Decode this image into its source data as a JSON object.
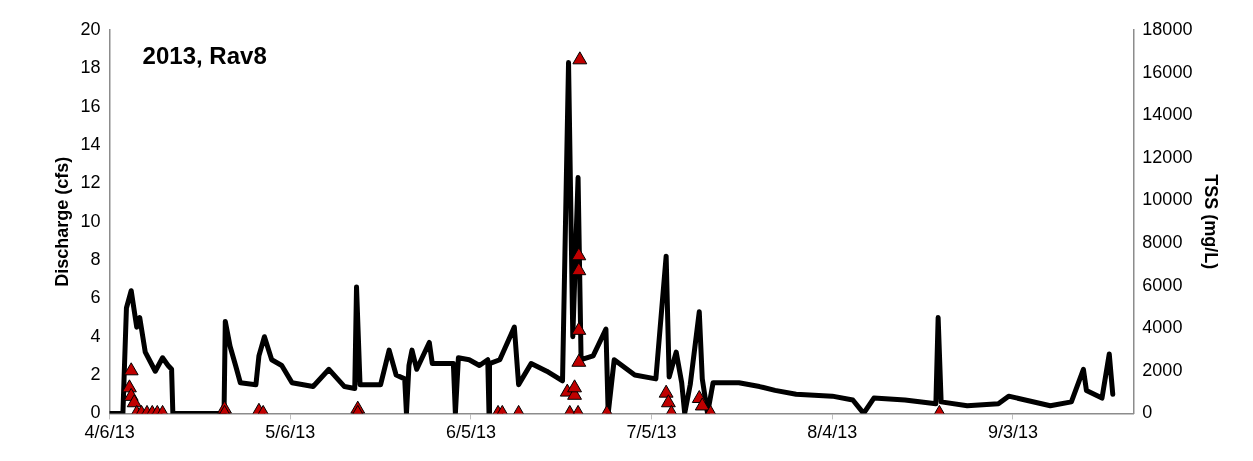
{
  "chart_data": {
    "type": "line",
    "title": "2013, Rav8",
    "ylabel": "Discharge (cfs)",
    "y2label": "TSS (mg/L)",
    "xlim": [
      "2013-04-06",
      "2013-09-23"
    ],
    "xticks": [
      {
        "value": "2013-04-06",
        "label": "4/6/13"
      },
      {
        "value": "2013-05-06",
        "label": "5/6/13"
      },
      {
        "value": "2013-06-05",
        "label": "6/5/13"
      },
      {
        "value": "2013-07-05",
        "label": "7/5/13"
      },
      {
        "value": "2013-08-04",
        "label": "8/4/13"
      },
      {
        "value": "2013-09-03",
        "label": "9/3/13"
      }
    ],
    "ylim": [
      0,
      20
    ],
    "yticks": [
      0,
      2,
      4,
      6,
      8,
      10,
      12,
      14,
      16,
      18,
      20
    ],
    "y2lim": [
      0,
      18000
    ],
    "y2ticks": [
      0,
      2000,
      4000,
      6000,
      8000,
      10000,
      12000,
      14000,
      16000,
      18000
    ],
    "grid": false,
    "series": [
      {
        "type": "line",
        "color": "#000000",
        "marker": "none",
        "line_style": "solid",
        "x": [
          "2013-04-06T00:00",
          "2013-04-08T05:00",
          "2013-04-08T10:00",
          "2013-04-08T19:00",
          "2013-04-09T14:00",
          "2013-04-10T12:00",
          "2013-04-11T00:00",
          "2013-04-11T22:00",
          "2013-04-12T14:00",
          "2013-04-13T14:00",
          "2013-04-14T19:00",
          "2013-04-15T17:00",
          "2013-04-16T07:00",
          "2013-04-16T12:00",
          "2013-04-25T00:00",
          "2013-04-25T05:00",
          "2013-04-26T00:00",
          "2013-04-26T22:00",
          "2013-04-27T17:00",
          "2013-04-30T07:00",
          "2013-04-30T19:00",
          "2013-05-01T17:00",
          "2013-05-02T22:00",
          "2013-05-04T14:00",
          "2013-05-06T07:00",
          "2013-05-09T19:00",
          "2013-05-12T10:00",
          "2013-05-15T00:00",
          "2013-05-16T17:00",
          "2013-05-17T00:00",
          "2013-05-17T14:00",
          "2013-05-21T00:00",
          "2013-05-22T10:00",
          "2013-05-23T14:00",
          "2013-05-25T00:00",
          "2013-05-25T07:00",
          "2013-05-25T17:00",
          "2013-05-26T05:00",
          "2013-05-27T00:00",
          "2013-05-29T02:00",
          "2013-05-29T14:00",
          "2013-06-02T02:00",
          "2013-06-02T10:00",
          "2013-06-02T22:00",
          "2013-06-04T17:00",
          "2013-06-06T10:00",
          "2013-06-07T19:00",
          "2013-06-08T00:00",
          "2013-06-08T02:00",
          "2013-06-09T19:00",
          "2013-06-12T05:00",
          "2013-06-12T22:00",
          "2013-06-15T00:00",
          "2013-06-17T14:00",
          "2013-06-20T05:00",
          "2013-06-21T05:00",
          "2013-06-21T22:00",
          "2013-06-22T19:00",
          "2013-06-23T07:00",
          "2013-06-25T07:00",
          "2013-06-27T10:00",
          "2013-06-27T19:00",
          "2013-06-28T19:00",
          "2013-07-02T05:00",
          "2013-07-05T17:00",
          "2013-07-07T10:00",
          "2013-07-07T22:00",
          "2013-07-09T02:00",
          "2013-07-10T00:00",
          "2013-07-10T12:00",
          "2013-07-11T10:00",
          "2013-07-12T22:00",
          "2013-07-13T10:00",
          "2013-07-14T07:00",
          "2013-07-15T05:00",
          "2013-07-19T12:00",
          "2013-07-22T22:00",
          "2013-07-25T12:00",
          "2013-07-29T00:00",
          "2013-08-04T00:00",
          "2013-08-07T10:00",
          "2013-08-09T05:00",
          "2013-08-10T22:00",
          "2013-08-16T02:00",
          "2013-08-21T05:00",
          "2013-08-21T14:00",
          "2013-08-22T02:00",
          "2013-08-26T10:00",
          "2013-08-31T14:00",
          "2013-09-02T07:00",
          "2013-09-09T05:00",
          "2013-09-12T17:00",
          "2013-09-14T17:00",
          "2013-09-15T05:00",
          "2013-09-17T19:00",
          "2013-09-19T00:00",
          "2013-09-19T14:00"
        ],
        "values": [
          0,
          0,
          2.0,
          5.5,
          6.4,
          4.5,
          5.0,
          3.2,
          2.8,
          2.2,
          2.9,
          2.5,
          2.3,
          0,
          0,
          4.8,
          3.5,
          2.5,
          1.6,
          1.5,
          3.0,
          4.0,
          2.8,
          2.5,
          1.6,
          1.4,
          2.3,
          1.4,
          1.3,
          6.6,
          1.5,
          1.5,
          3.3,
          2.0,
          1.8,
          0,
          2.5,
          3.3,
          2.3,
          3.7,
          2.6,
          2.6,
          0,
          2.9,
          2.8,
          2.5,
          2.8,
          0,
          2.6,
          2.8,
          4.5,
          1.5,
          2.6,
          2.2,
          1.7,
          18.3,
          4.0,
          12.3,
          2.8,
          3.0,
          4.4,
          0,
          2.8,
          2.0,
          1.8,
          8.2,
          1.9,
          3.2,
          1.6,
          0,
          1.5,
          5.3,
          1.8,
          0,
          1.6,
          1.6,
          1.4,
          1.2,
          1.0,
          0.9,
          0.7,
          0,
          0.8,
          0.7,
          0.5,
          5.0,
          0.6,
          0.4,
          0.5,
          0.9,
          0.4,
          0.6,
          2.3,
          1.2,
          0.8,
          3.1,
          1.0
        ]
      },
      {
        "type": "scatter",
        "axis": "y2",
        "color": "#c00000",
        "marker": "triangle",
        "x": [
          "2013-04-09T07:00",
          "2013-04-09T14:00",
          "2013-04-09T14:00",
          "2013-04-10T02:00",
          "2013-04-10T12:00",
          "2013-04-11T07:00",
          "2013-04-12T05:00",
          "2013-04-13T02:00",
          "2013-04-13T22:00",
          "2013-04-14T19:00",
          "2013-04-25T02:00",
          "2013-04-25T02:00",
          "2013-04-30T19:00",
          "2013-05-01T12:00",
          "2013-05-17T05:00",
          "2013-05-17T05:00",
          "2013-06-09T12:00",
          "2013-06-10T05:00",
          "2013-06-12T22:00",
          "2013-06-21T00:00",
          "2013-06-21T10:00",
          "2013-06-22T05:00",
          "2013-06-22T05:00",
          "2013-06-22T19:00",
          "2013-06-22T22:00",
          "2013-06-22T22:00",
          "2013-06-22T22:00",
          "2013-06-22T22:00",
          "2013-06-23T02:00",
          "2013-06-27T14:00",
          "2013-07-07T10:00",
          "2013-07-07T19:00",
          "2013-07-08T07:00",
          "2013-07-12T22:00",
          "2013-07-13T10:00",
          "2013-07-14T19:00",
          "2013-08-21T19:00"
        ],
        "values": [
          1200,
          2000,
          800,
          500,
          0,
          0,
          0,
          0,
          0,
          0,
          200,
          0,
          100,
          0,
          200,
          0,
          0,
          0,
          0,
          1000,
          0,
          850,
          1200,
          0,
          2400,
          3900,
          6700,
          7400,
          16600,
          0,
          950,
          500,
          0,
          700,
          350,
          0,
          0
        ]
      }
    ]
  }
}
